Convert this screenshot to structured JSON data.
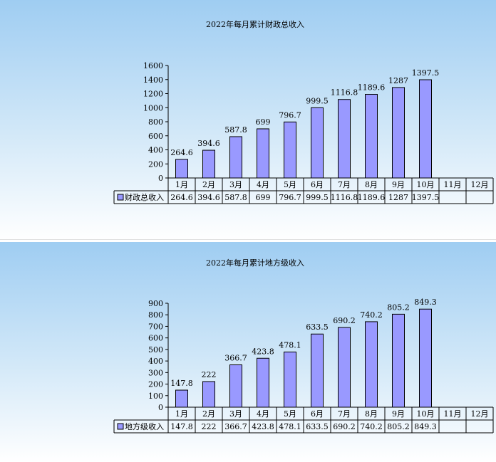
{
  "chart_data": [
    {
      "type": "bar",
      "title": "2022年每月累计财政总收入",
      "categories": [
        "1月",
        "2月",
        "3月",
        "4月",
        "5月",
        "6月",
        "7月",
        "8月",
        "9月",
        "10月",
        "11月",
        "12月"
      ],
      "series": [
        {
          "name": "财政总收入",
          "values": [
            264.6,
            394.6,
            587.8,
            699,
            796.7,
            999.5,
            1116.8,
            1189.6,
            1287,
            1397.5,
            null,
            null
          ]
        }
      ],
      "value_labels": [
        "264.6",
        "394.6",
        "587.8",
        "699",
        "796.7",
        "999.5",
        "1116.8",
        "1189.6",
        "1287",
        "1397.5",
        "",
        ""
      ],
      "ylim": [
        0,
        1600
      ],
      "yticks": [
        "0",
        "200",
        "400",
        "600",
        "800",
        "1000",
        "1200",
        "1400",
        "1600"
      ],
      "xlabel": "",
      "ylabel": "",
      "grid": false,
      "legend": "data-table",
      "colors": {
        "bar_fill": "#9999ff",
        "bar_stroke": "#000000"
      }
    },
    {
      "type": "bar",
      "title": "2022年每月累计地方级收入",
      "categories": [
        "1月",
        "2月",
        "3月",
        "4月",
        "5月",
        "6月",
        "7月",
        "8月",
        "9月",
        "10月",
        "11月",
        "12月"
      ],
      "series": [
        {
          "name": "地方级收入",
          "values": [
            147.8,
            222,
            366.7,
            423.8,
            478.1,
            633.5,
            690.2,
            740.2,
            805.2,
            849.3,
            null,
            null
          ]
        }
      ],
      "value_labels": [
        "147.8",
        "222",
        "366.7",
        "423.8",
        "478.1",
        "633.5",
        "690.2",
        "740.2",
        "805.2",
        "849.3",
        "",
        ""
      ],
      "ylim": [
        0,
        900
      ],
      "yticks": [
        "0",
        "100",
        "200",
        "300",
        "400",
        "500",
        "600",
        "700",
        "800",
        "900"
      ],
      "xlabel": "",
      "ylabel": "",
      "grid": false,
      "legend": "data-table",
      "colors": {
        "bar_fill": "#9999ff",
        "bar_stroke": "#000000"
      }
    }
  ]
}
